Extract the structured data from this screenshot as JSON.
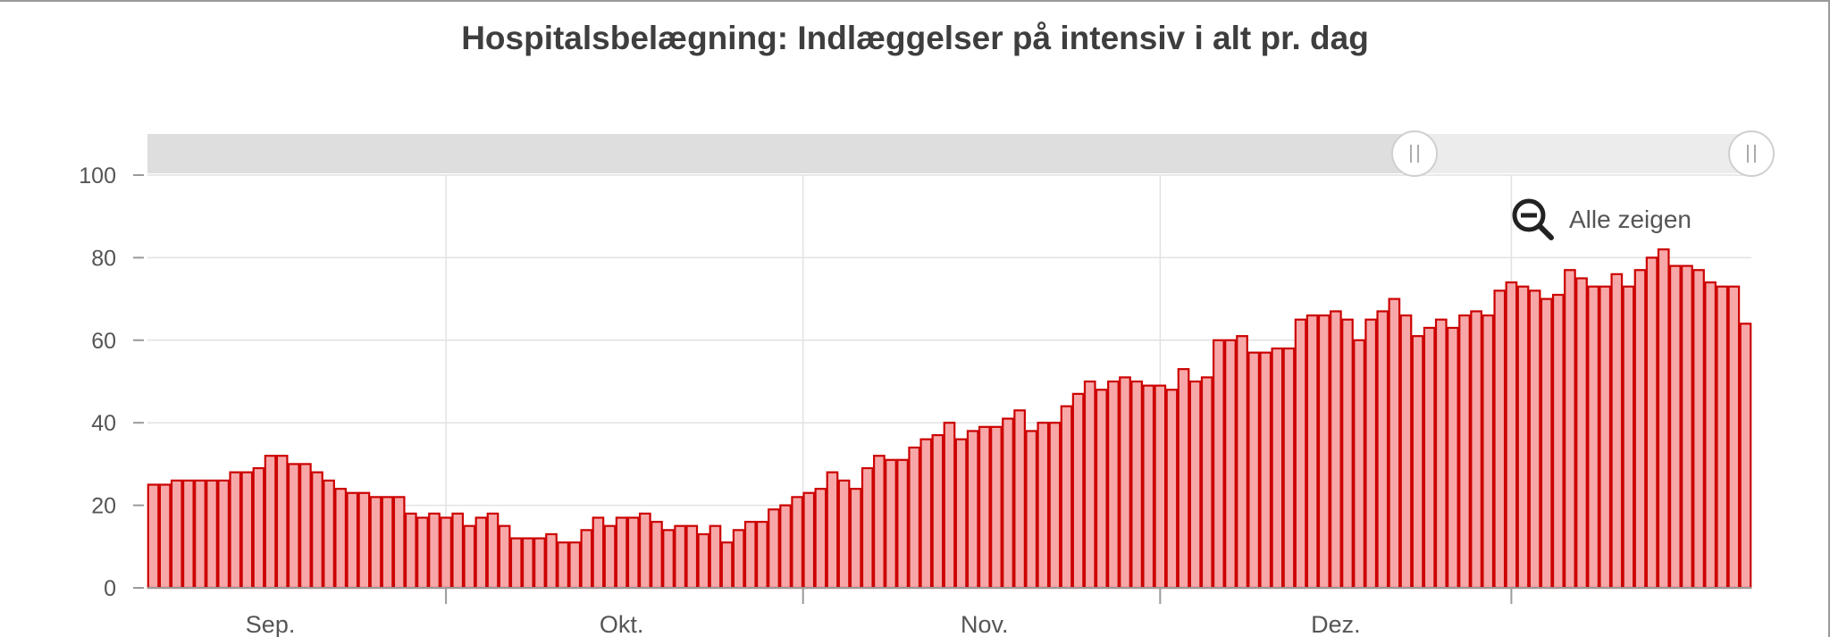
{
  "chart_data": {
    "type": "bar",
    "title": "Hospitalsbelægning: Indlæggelser på intensiv i alt pr. dag",
    "xlabel": "",
    "ylabel": "",
    "ylim": [
      0,
      100
    ],
    "yticks": [
      0,
      20,
      40,
      60,
      80,
      100
    ],
    "x_tick_labels": [
      {
        "label": "Sep.",
        "index": 10
      },
      {
        "label": "Okt.",
        "index": 40
      },
      {
        "label": "Nov.",
        "index": 71
      },
      {
        "label": "Dez.",
        "index": 101
      }
    ],
    "grid": true,
    "legend": "none",
    "colors": {
      "bar_fill": "#f7a7a7",
      "bar_stroke": "#cc0000"
    },
    "values": [
      25,
      25,
      26,
      26,
      26,
      26,
      26,
      28,
      28,
      29,
      32,
      32,
      30,
      30,
      28,
      26,
      24,
      23,
      23,
      22,
      22,
      22,
      18,
      17,
      18,
      17,
      18,
      15,
      17,
      18,
      15,
      12,
      12,
      12,
      13,
      11,
      11,
      14,
      17,
      15,
      17,
      17,
      18,
      16,
      14,
      15,
      15,
      13,
      15,
      11,
      14,
      16,
      16,
      19,
      20,
      22,
      23,
      24,
      28,
      26,
      24,
      29,
      32,
      31,
      31,
      34,
      36,
      37,
      40,
      36,
      38,
      39,
      39,
      41,
      43,
      38,
      40,
      40,
      44,
      47,
      50,
      48,
      50,
      51,
      50,
      49,
      49,
      48,
      53,
      50,
      51,
      60,
      60,
      61,
      57,
      57,
      58,
      58,
      65,
      66,
      66,
      67,
      65,
      60,
      65,
      67,
      70,
      66,
      61,
      63,
      65,
      63,
      66,
      67,
      66,
      72,
      74,
      73,
      72,
      70,
      71,
      77,
      75,
      73,
      73,
      76,
      73,
      77,
      80,
      82,
      78,
      78,
      77,
      74,
      73,
      73,
      64
    ]
  },
  "range_selector": {
    "start_fraction": 0.79,
    "end_fraction": 1.0
  },
  "zoom_reset": {
    "label": "Alle zeigen",
    "icon": "zoom-out-icon"
  }
}
